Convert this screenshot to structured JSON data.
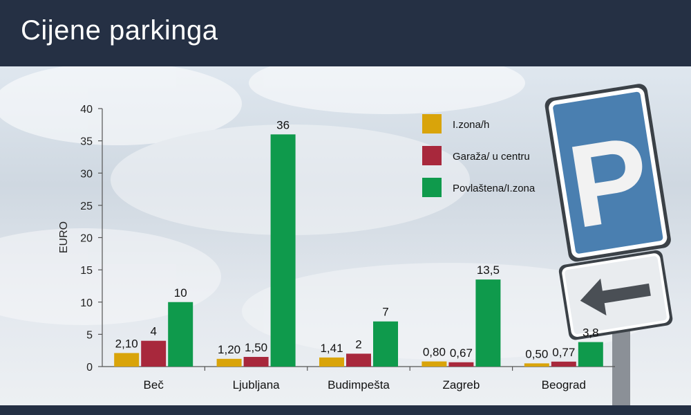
{
  "header": {
    "title": "Cijene parkinga"
  },
  "sign": {
    "letter": "P"
  },
  "chart_data": {
    "type": "bar",
    "ylabel": "EURO",
    "ylim": [
      0,
      40
    ],
    "yticks": [
      0,
      5,
      10,
      15,
      20,
      25,
      30,
      35,
      40
    ],
    "categories": [
      "Beč",
      "Ljubljana",
      "Budimpešta",
      "Zagreb",
      "Beograd"
    ],
    "legend_position": "top-right",
    "series": [
      {
        "name": "I.zona/h",
        "color": "#d9a40a",
        "values": [
          2.1,
          1.2,
          1.41,
          0.8,
          0.5
        ],
        "labels": [
          "2,10",
          "1,20",
          "1,41",
          "0,80",
          "0,50"
        ]
      },
      {
        "name": "Garaža/ u centru",
        "color": "#a8283c",
        "values": [
          4,
          1.5,
          2,
          0.67,
          0.77
        ],
        "labels": [
          "4",
          "1,50",
          "2",
          "0,67",
          "0,77"
        ]
      },
      {
        "name": "Povlaštena/I.zona",
        "color": "#0f9a4c",
        "values": [
          10,
          36,
          7,
          13.5,
          3.8
        ],
        "labels": [
          "10",
          "36",
          "7",
          "13,5",
          "3,8"
        ]
      }
    ]
  }
}
